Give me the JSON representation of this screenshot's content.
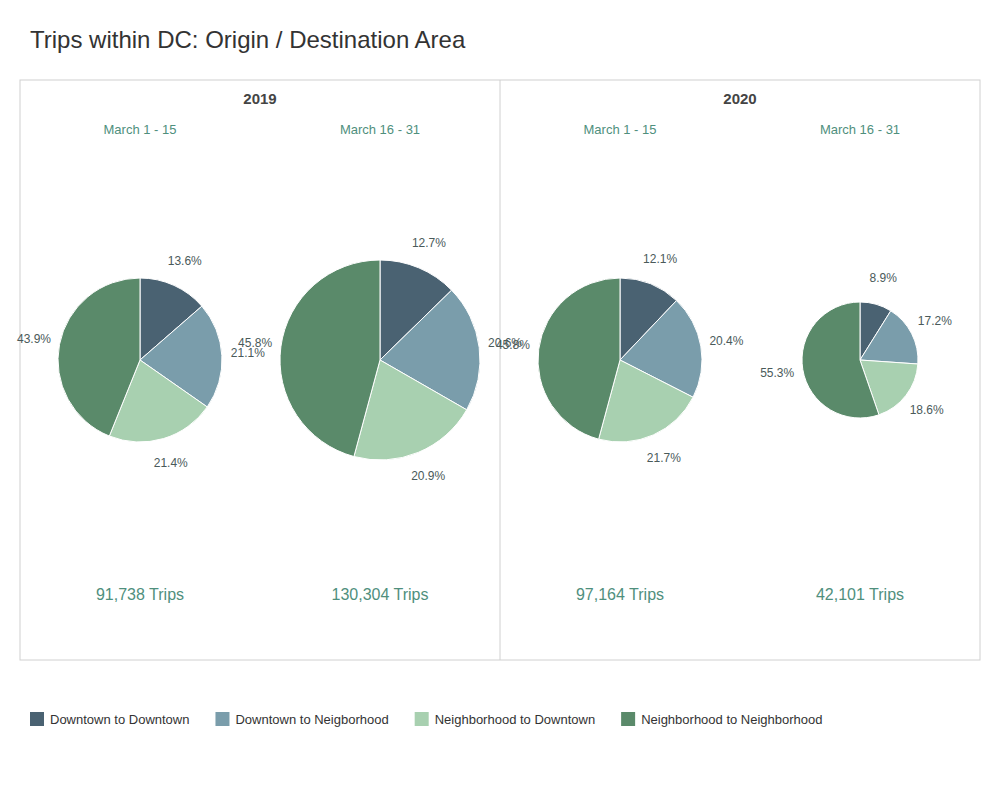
{
  "title": "Trips within DC: Origin / Destination Area",
  "annotations": [
    "2019",
    "2020"
  ],
  "chart_data": [
    {
      "type": "pie",
      "title": "March 1 - 15",
      "subtitle": "91,738 Trips",
      "categories": [
        "Downtown to Downtown",
        "Downtown to Neigborhood",
        "Neighborhood to Downtown",
        "Neighborhood to Neighborhood"
      ],
      "values": [
        13.6,
        21.1,
        21.4,
        43.9
      ],
      "value_labels": [
        "13.6%",
        "21.1%",
        "21.4%",
        "43.9%"
      ],
      "colors": [
        "#4a6272",
        "#7a9dab",
        "#a8d0b0",
        "#5a8a6a"
      ],
      "data_labels": true,
      "legend": "bottom"
    },
    {
      "type": "pie",
      "title": "March 16 - 31",
      "subtitle": "130,304 Trips",
      "categories": [
        "Downtown to Downtown",
        "Downtown to Neigborhood",
        "Neighborhood to Downtown",
        "Neighborhood to Neighborhood"
      ],
      "values": [
        12.7,
        20.6,
        20.9,
        45.8
      ],
      "value_labels": [
        "12.7%",
        "20.6%",
        "20.9%",
        "45.8%"
      ],
      "colors": [
        "#4a6272",
        "#7a9dab",
        "#a8d0b0",
        "#5a8a6a"
      ],
      "data_labels": true,
      "legend": "bottom"
    },
    {
      "type": "pie",
      "title": "March 1 - 15",
      "subtitle": "97,164 Trips",
      "categories": [
        "Downtown to Downtown",
        "Downtown to Neigborhood",
        "Neighborhood to Downtown",
        "Neighborhood to Neighborhood"
      ],
      "values": [
        12.1,
        20.4,
        21.7,
        45.8
      ],
      "value_labels": [
        "12.1%",
        "20.4%",
        "21.7%",
        "45.8%"
      ],
      "colors": [
        "#4a6272",
        "#7a9dab",
        "#a8d0b0",
        "#5a8a6a"
      ],
      "data_labels": true,
      "legend": "bottom"
    },
    {
      "type": "pie",
      "title": "March 16 - 31",
      "subtitle": "42,101 Trips",
      "categories": [
        "Downtown to Downtown",
        "Downtown to Neigborhood",
        "Neighborhood to Downtown",
        "Neighborhood to Neighborhood"
      ],
      "values": [
        8.9,
        17.2,
        18.6,
        55.3
      ],
      "value_labels": [
        "8.9%",
        "17.2%",
        "18.6%",
        "55.3%"
      ],
      "colors": [
        "#4a6272",
        "#7a9dab",
        "#a8d0b0",
        "#5a8a6a"
      ],
      "data_labels": true,
      "legend": "bottom"
    }
  ]
}
